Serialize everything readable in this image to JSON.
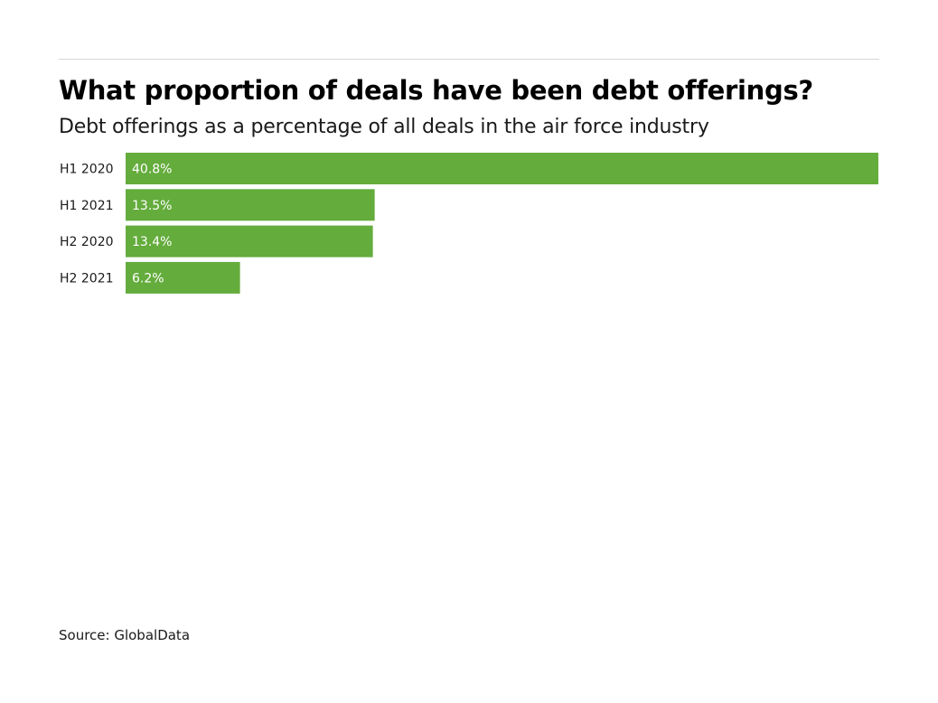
{
  "header": {
    "title": "What proportion of deals have been debt offerings?",
    "subtitle": "Debt offerings as a percentage of all deals in the air force industry"
  },
  "footer": {
    "source": "Source: GlobalData"
  },
  "colors": {
    "bar": "#64ac3c",
    "rule": "#d6d6d6",
    "value_text": "#ffffff"
  },
  "chart_data": {
    "type": "bar",
    "orientation": "horizontal",
    "title": "What proportion of deals have been debt offerings?",
    "subtitle": "Debt offerings as a percentage of all deals in the air force industry",
    "categories": [
      "H1 2020",
      "H1 2021",
      "H2 2020",
      "H2 2021"
    ],
    "values": [
      40.8,
      13.5,
      13.4,
      6.2
    ],
    "value_labels": [
      "40.8%",
      "13.5%",
      "13.4%",
      "6.2%"
    ],
    "unit": "%",
    "xlim": [
      0,
      40.8
    ],
    "grid": false,
    "legend": "none"
  }
}
